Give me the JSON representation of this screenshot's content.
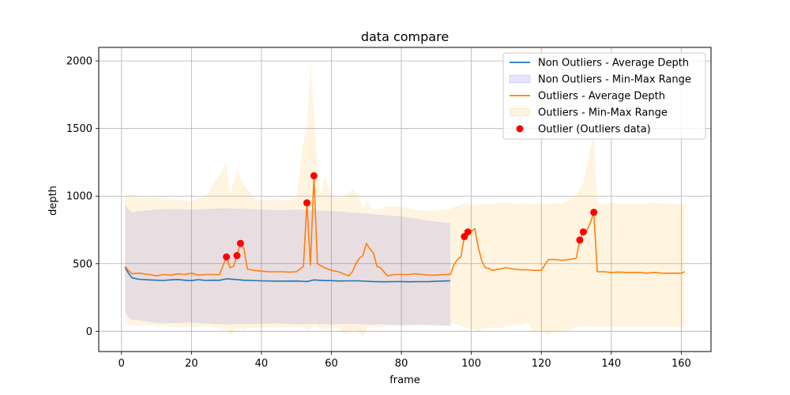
{
  "chart_data": {
    "type": "line",
    "title": "data compare",
    "xlabel": "frame",
    "ylabel": "depth",
    "xlim": [
      -6.5,
      168.5
    ],
    "ylim": [
      -150,
      2100
    ],
    "xticks": [
      0,
      20,
      40,
      60,
      80,
      100,
      120,
      140,
      160
    ],
    "yticks": [
      0,
      500,
      1000,
      1500,
      2000
    ],
    "grid": true,
    "legend_position": "top-right",
    "series": [
      {
        "name": "Non Outliers - Average Depth",
        "kind": "line",
        "color": "#1f77b4",
        "x": [
          1,
          2,
          3,
          5,
          8,
          10,
          12,
          14,
          16,
          18,
          20,
          22,
          24,
          26,
          28,
          30,
          32,
          35,
          40,
          45,
          50,
          53,
          55,
          58,
          60,
          62,
          65,
          68,
          70,
          72,
          75,
          78,
          80,
          82,
          85,
          88,
          90,
          92,
          94
        ],
        "y": [
          475,
          430,
          395,
          385,
          380,
          378,
          376,
          380,
          383,
          378,
          375,
          382,
          376,
          378,
          377,
          388,
          384,
          378,
          373,
          371,
          372,
          368,
          380,
          375,
          375,
          372,
          373,
          373,
          370,
          368,
          366,
          367,
          368,
          366,
          367,
          368,
          370,
          372,
          373
        ]
      },
      {
        "name": "Non Outliers - Min-Max Range",
        "kind": "band",
        "color": "#0000ff",
        "opacity": 0.1,
        "x": [
          1,
          2,
          3,
          5,
          8,
          10,
          15,
          20,
          25,
          30,
          35,
          40,
          45,
          50,
          55,
          60,
          65,
          70,
          75,
          80,
          85,
          90,
          94
        ],
        "lower": [
          150,
          100,
          85,
          80,
          70,
          60,
          60,
          65,
          55,
          50,
          55,
          55,
          60,
          50,
          55,
          50,
          55,
          50,
          50,
          45,
          50,
          45,
          40
        ],
        "upper": [
          940,
          900,
          880,
          890,
          895,
          900,
          905,
          900,
          905,
          910,
          905,
          900,
          895,
          900,
          895,
          890,
          880,
          870,
          860,
          850,
          830,
          810,
          800
        ]
      },
      {
        "name": "Outliers - Average Depth",
        "kind": "line",
        "color": "#ff7f0e",
        "x": [
          1,
          2,
          3,
          5,
          8,
          10,
          12,
          14,
          16,
          18,
          20,
          22,
          24,
          26,
          28,
          30,
          31,
          32,
          33,
          34,
          35,
          36,
          38,
          40,
          42,
          44,
          46,
          48,
          50,
          52,
          53,
          54,
          55,
          56,
          58,
          60,
          62,
          64,
          65,
          66,
          67,
          68,
          69,
          70,
          71,
          72,
          73,
          74,
          76,
          78,
          80,
          82,
          84,
          86,
          88,
          90,
          92,
          94,
          95,
          96,
          97,
          98,
          99,
          100,
          101,
          102,
          103,
          104,
          105,
          106,
          108,
          110,
          112,
          114,
          116,
          118,
          120,
          122,
          124,
          126,
          128,
          130,
          131,
          132,
          133,
          134,
          135,
          136,
          138,
          140,
          142,
          145,
          148,
          150,
          152,
          155,
          158,
          160,
          161
        ],
        "y": [
          480,
          450,
          425,
          430,
          420,
          410,
          420,
          415,
          425,
          420,
          430,
          415,
          420,
          420,
          418,
          550,
          470,
          480,
          560,
          650,
          610,
          460,
          450,
          445,
          440,
          440,
          440,
          438,
          440,
          480,
          950,
          490,
          1150,
          500,
          470,
          450,
          440,
          420,
          410,
          440,
          500,
          540,
          560,
          650,
          610,
          580,
          480,
          470,
          410,
          420,
          420,
          420,
          425,
          420,
          415,
          415,
          420,
          420,
          490,
          530,
          550,
          700,
          735,
          740,
          760,
          620,
          520,
          470,
          465,
          450,
          460,
          470,
          460,
          455,
          455,
          450,
          450,
          530,
          530,
          525,
          530,
          540,
          675,
          735,
          745,
          800,
          880,
          440,
          440,
          435,
          438,
          435,
          435,
          430,
          435,
          430,
          430,
          430,
          440
        ]
      },
      {
        "name": "Outliers - Min-Max Range",
        "kind": "band",
        "color": "#ffa500",
        "opacity": 0.12,
        "x": [
          1,
          3,
          5,
          8,
          12,
          16,
          20,
          24,
          27,
          30,
          31,
          33,
          35,
          36,
          38,
          40,
          44,
          48,
          50,
          52,
          53,
          54,
          55,
          56,
          57,
          58,
          60,
          62,
          64,
          66,
          68,
          69,
          70,
          72,
          74,
          76,
          80,
          84,
          88,
          92,
          94,
          95,
          97,
          98,
          100,
          101,
          102,
          103,
          104,
          106,
          108,
          110,
          113,
          116,
          118,
          120,
          122,
          124,
          126,
          128,
          130,
          132,
          134,
          135,
          136,
          138,
          140,
          144,
          148,
          152,
          156,
          160,
          161
        ],
        "lower": [
          50,
          40,
          40,
          40,
          40,
          30,
          30,
          40,
          30,
          10,
          -30,
          30,
          10,
          30,
          20,
          30,
          30,
          30,
          30,
          30,
          10,
          10,
          40,
          30,
          20,
          20,
          20,
          30,
          -30,
          10,
          -10,
          -50,
          20,
          30,
          30,
          40,
          40,
          40,
          40,
          40,
          40,
          60,
          40,
          30,
          20,
          10,
          -10,
          20,
          20,
          30,
          20,
          40,
          40,
          60,
          -10,
          0,
          -30,
          0,
          0,
          10,
          30,
          30,
          40,
          30,
          30,
          30,
          30,
          30,
          30,
          30,
          30,
          30,
          30
        ],
        "upper": [
          1000,
          1010,
          980,
          990,
          980,
          975,
          960,
          1000,
          1120,
          1240,
          1000,
          1200,
          1080,
          1050,
          980,
          970,
          980,
          970,
          990,
          1400,
          1500,
          2000,
          1600,
          1250,
          1000,
          1150,
          1000,
          990,
          1000,
          1050,
          1000,
          900,
          970,
          900,
          900,
          930,
          920,
          900,
          890,
          900,
          900,
          920,
          930,
          950,
          930,
          940,
          930,
          940,
          940,
          940,
          950,
          950,
          940,
          950,
          940,
          950,
          940,
          950,
          940,
          970,
          1000,
          1100,
          1350,
          1450,
          950,
          940,
          950,
          940,
          940,
          950,
          945,
          940,
          945
        ]
      },
      {
        "name": "Outlier (Outliers data)",
        "kind": "scatter",
        "color": "#ff0000",
        "x": [
          30,
          33,
          34,
          53,
          55,
          98,
          99,
          131,
          132,
          135
        ],
        "y": [
          550,
          560,
          650,
          950,
          1150,
          700,
          735,
          675,
          735,
          880
        ]
      }
    ],
    "legend": [
      {
        "label": "Non Outliers - Average Depth",
        "kind": "line",
        "color": "#1f77b4"
      },
      {
        "label": "Non Outliers - Min-Max Range",
        "kind": "band",
        "color": "#0000ff",
        "opacity": 0.1
      },
      {
        "label": "Outliers - Average Depth",
        "kind": "line",
        "color": "#ff7f0e"
      },
      {
        "label": "Outliers - Min-Max Range",
        "kind": "band",
        "color": "#ffa500",
        "opacity": 0.12
      },
      {
        "label": "Outlier (Outliers data)",
        "kind": "scatter",
        "color": "#ff0000"
      }
    ]
  }
}
